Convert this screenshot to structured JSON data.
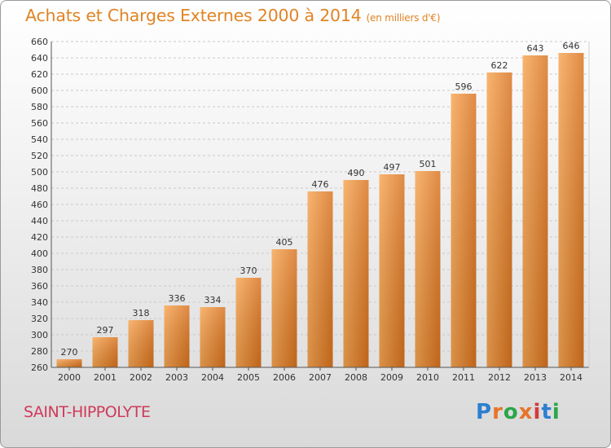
{
  "header": {
    "title": "Achats et Charges Externes 2000 à 2014",
    "unit": "(en milliers d'€)"
  },
  "footer": {
    "commune": "SAINT-HIPPOLYTE",
    "logo_text": "Proxiti",
    "logo_colors": [
      "#2d7fd0",
      "#e8742a",
      "#2aa64a",
      "#e8742a",
      "#d43a3a",
      "#2d7fd0",
      "#2aa64a"
    ]
  },
  "colors": {
    "bar_light": "#f7a552",
    "bar_dark": "#d8721e",
    "title": "#e08425",
    "commune": "#cf3a5b"
  },
  "chart_data": {
    "type": "bar",
    "title": "Achats et Charges Externes 2000 à 2014",
    "subtitle": "(en milliers d'€)",
    "xlabel": "",
    "ylabel": "",
    "categories": [
      "2000",
      "2001",
      "2002",
      "2003",
      "2004",
      "2005",
      "2006",
      "2007",
      "2008",
      "2009",
      "2010",
      "2011",
      "2012",
      "2013",
      "2014"
    ],
    "values": [
      270,
      297,
      318,
      336,
      334,
      370,
      405,
      476,
      490,
      497,
      501,
      596,
      622,
      643,
      646
    ],
    "ylim": [
      260,
      660
    ],
    "yticks": [
      260,
      280,
      300,
      320,
      340,
      360,
      380,
      400,
      420,
      440,
      460,
      480,
      500,
      520,
      540,
      560,
      580,
      600,
      620,
      640,
      660
    ],
    "grid": true,
    "legend": "none"
  }
}
